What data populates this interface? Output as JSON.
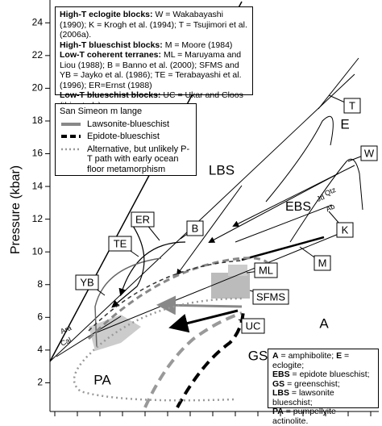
{
  "axis": {
    "ylabel": "Pressure (kbar)",
    "ylim": [
      0,
      25
    ],
    "yticks": [
      2,
      4,
      6,
      8,
      10,
      12,
      14,
      16,
      18,
      20,
      22,
      24
    ]
  },
  "sources": [
    {
      "heading": "High-T eclogite blocks:",
      "text": "W = Wakabayashi (1990); K = Krogh et al. (1994); T = Tsujimori et al. (2006a)."
    },
    {
      "heading": "High-T blueschist blocks:",
      "text": "M = Moore (1984)"
    },
    {
      "heading": "Low-T coherent terranes:",
      "text": "ML = Maruyama and Liou (1988); B = Banno et al. (2000); SFMS and YB = Jayko et al. (1986); TE = Terabayashi et al. (1996); ER=Ernst (1988)"
    },
    {
      "heading": "Low-T blueschist blocks:",
      "text": "UC = Ukar and Cloos (this study)."
    }
  ],
  "melange_legend": {
    "title": "San Simeon m lange",
    "items": [
      "Lawsonite-blueschist",
      "Epidote-blueschist",
      "Alternative, but unlikely P-T path with early ocean floor metamorphism"
    ]
  },
  "facies_legend": [
    {
      "abbr": "A",
      "text": "= amphibolite;"
    },
    {
      "abbr": "E",
      "text": "= eclogite;"
    },
    {
      "abbr": "EBS",
      "text": "= epidote blueschist;"
    },
    {
      "abbr": "GS",
      "text": "= greenschist;"
    },
    {
      "abbr": "LBS",
      "text": "= lawsonite blueschist;"
    },
    {
      "abbr": "PA",
      "text": "= pumpellyite actinolite."
    }
  ],
  "box_labels": [
    "T",
    "W",
    "K",
    "M",
    "ML",
    "SFMS",
    "UC",
    "ER",
    "B",
    "TE",
    "YB"
  ],
  "region_labels": [
    "LBS",
    "EBS",
    "E",
    "A",
    "GS",
    "PA"
  ],
  "small_labels": [
    "Ara",
    "Cal",
    "Jd",
    "Qtz",
    "Ab"
  ]
}
